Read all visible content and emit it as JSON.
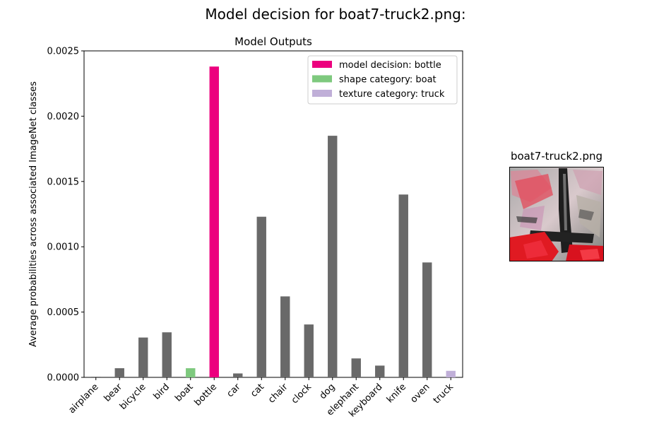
{
  "figure": {
    "suptitle": "Model decision for boat7-truck2.png:",
    "image_title": "boat7-truck2.png",
    "image_icon": "stylized-image-thumbnail"
  },
  "chart_data": {
    "type": "bar",
    "title": "Model Outputs",
    "xlabel": "",
    "ylabel": "Average probabilities across associated ImageNet classes",
    "categories": [
      "airplane",
      "bear",
      "bicycle",
      "bird",
      "boat",
      "bottle",
      "car",
      "cat",
      "chair",
      "clock",
      "dog",
      "elephant",
      "keyboard",
      "knife",
      "oven",
      "truck"
    ],
    "values": [
      5e-06,
      7e-05,
      0.000305,
      0.000345,
      7e-05,
      0.00238,
      3e-05,
      0.00123,
      0.00062,
      0.000405,
      0.00185,
      0.000145,
      9e-05,
      0.0014,
      0.00088,
      5e-05
    ],
    "ylim": [
      0,
      0.0025
    ],
    "yticks": [
      0,
      0.0005,
      0.001,
      0.0015,
      0.002,
      0.0025
    ],
    "ytick_labels": [
      "0.0000",
      "0.0005",
      "0.0010",
      "0.0015",
      "0.0020",
      "0.0025"
    ],
    "grid": false,
    "colors": {
      "default": "#696969",
      "model_decision": "#ec007e",
      "shape": "#7ec97e",
      "texture": "#c0afd8"
    },
    "highlights": {
      "bottle": "model_decision",
      "boat": "shape",
      "truck": "texture"
    },
    "legend": {
      "placement": "top-right",
      "entries": [
        {
          "label": "model decision: bottle",
          "color_key": "model_decision"
        },
        {
          "label": "shape category: boat",
          "color_key": "shape"
        },
        {
          "label": "texture category: truck",
          "color_key": "texture"
        }
      ]
    }
  }
}
